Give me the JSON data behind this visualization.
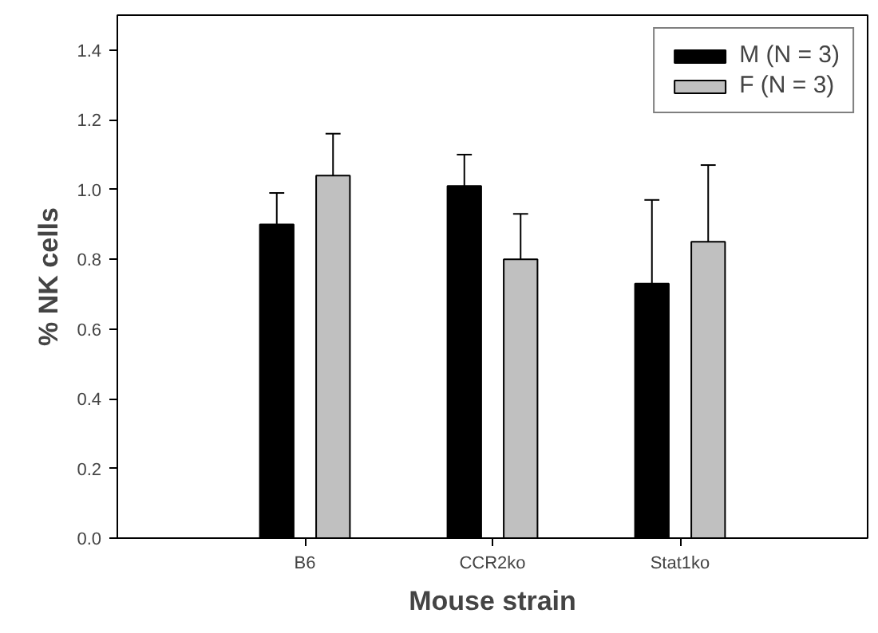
{
  "chart_data": {
    "type": "bar",
    "xlabel": "Mouse strain",
    "ylabel": "% NK cells",
    "categories": [
      "B6",
      "CCR2ko",
      "Stat1ko"
    ],
    "series": [
      {
        "name": "M (N = 3)",
        "color": "#000000",
        "values": [
          0.9,
          1.01,
          0.73
        ],
        "errors": [
          [
            0.9,
            0.99
          ],
          [
            1.01,
            1.1
          ],
          [
            0.73,
            0.97
          ]
        ]
      },
      {
        "name": "F (N = 3)",
        "color": "#c0c0c0",
        "values": [
          1.04,
          0.8,
          0.85
        ],
        "errors": [
          [
            1.04,
            1.16
          ],
          [
            0.8,
            0.93
          ],
          [
            0.85,
            1.07
          ]
        ]
      }
    ],
    "ylim": [
      0,
      1.5
    ],
    "yticks": [
      {
        "value": 0,
        "label": "0.0"
      },
      0.2,
      0.4,
      0.6,
      0.8,
      {
        "value": 1,
        "label": "1.0"
      },
      1.2,
      1.4
    ],
    "grid": false,
    "legend": "top right"
  }
}
